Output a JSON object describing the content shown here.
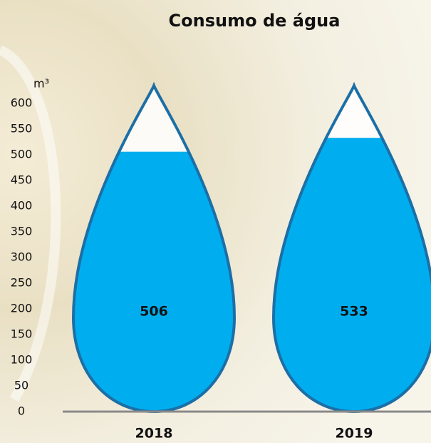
{
  "chart_data": {
    "type": "drop-bar",
    "title": "Consumo de água",
    "y_axis_label": "m³",
    "categories": [
      "2018",
      "2019"
    ],
    "values": [
      506,
      533
    ],
    "color": "#00aeef",
    "ylim": [
      0,
      600
    ],
    "yticks": [
      0,
      50,
      100,
      150,
      200,
      250,
      300,
      350,
      400,
      450,
      500,
      550,
      600
    ]
  }
}
